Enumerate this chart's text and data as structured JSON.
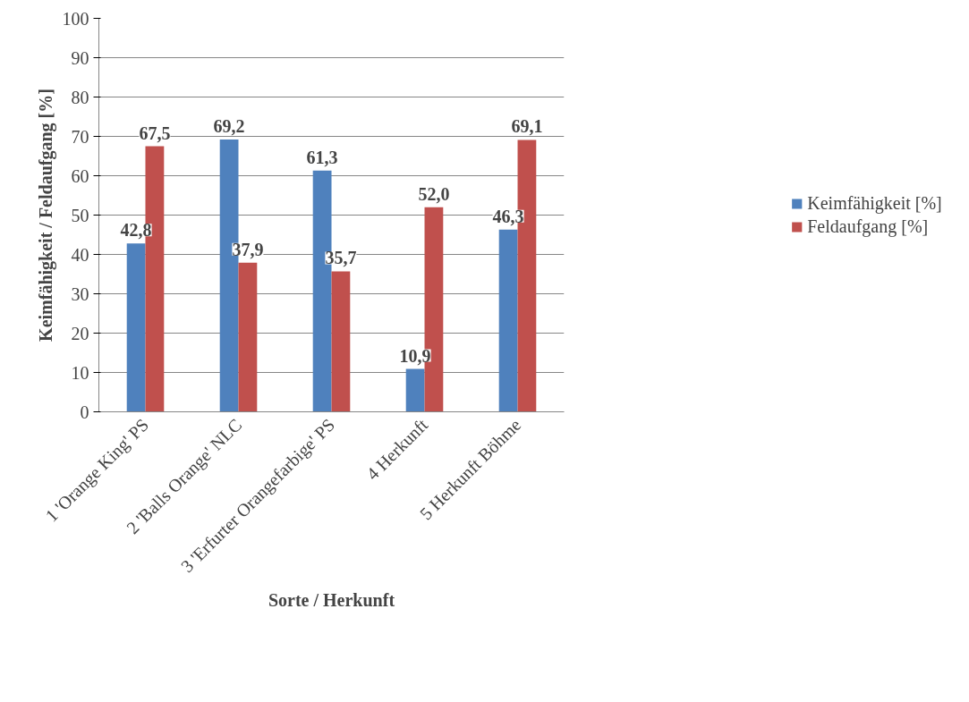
{
  "chart_data": {
    "type": "bar",
    "xlabel": "Sorte / Herkunft",
    "ylabel": "Keimfähigkeit / Feldaufgang [%]",
    "categories": [
      "1 'Orange King' PS",
      "2 'Balls Orange' NLC",
      "3 'Erfurter Orangefarbige' PS",
      "4 Herkunft",
      "5 Herkunft Böhme"
    ],
    "series": [
      {
        "name": "Keimfähigkeit [%]",
        "color": "#4f81bd",
        "values": [
          42.8,
          69.2,
          61.3,
          10.9,
          46.3
        ],
        "value_labels": [
          "42,8",
          "69,2",
          "61,3",
          "10,9",
          "46,3"
        ]
      },
      {
        "name": "Feldaufgang [%]",
        "color": "#c0504d",
        "values": [
          67.5,
          37.9,
          35.7,
          52.0,
          69.1
        ],
        "value_labels": [
          "67,5",
          "37,9",
          "35,7",
          "52,0",
          "69,1"
        ]
      }
    ],
    "ylim": [
      0,
      100
    ],
    "yticks": [
      0,
      10,
      20,
      30,
      40,
      50,
      60,
      70,
      80,
      90,
      100
    ],
    "grid": "y",
    "legend": "right"
  }
}
